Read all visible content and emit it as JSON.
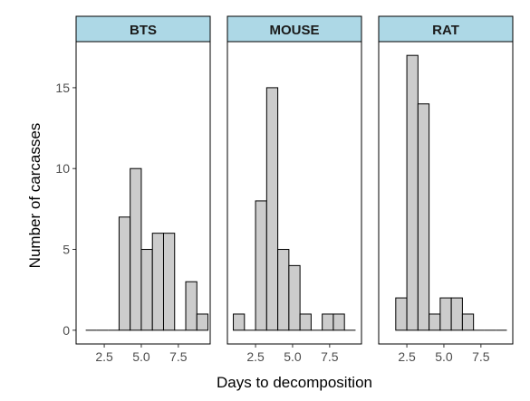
{
  "chart_data": {
    "type": "bar",
    "subtype": "faceted-histogram",
    "xlabel": "Days to decomposition",
    "ylabel": "Number of carcasses",
    "xlim": [
      0.6,
      9.65
    ],
    "ylim": [
      -0.85,
      17.85
    ],
    "x_ticks": [
      2.5,
      5.0,
      7.5
    ],
    "x_tick_labels": [
      "2.5",
      "5.0",
      "7.5"
    ],
    "y_ticks": [
      0,
      5,
      10,
      15
    ],
    "y_tick_labels": [
      "0",
      "5",
      "10",
      "15"
    ],
    "bin_width": 0.75,
    "strip_color": "#add8e6",
    "bar_fill": "#cccccc",
    "bar_stroke": "#000000",
    "grid": false,
    "facets": [
      {
        "name": "BTS",
        "bins": [
          {
            "x0": 1.25,
            "count": 0
          },
          {
            "x0": 2.0,
            "count": 0
          },
          {
            "x0": 2.75,
            "count": 0
          },
          {
            "x0": 3.5,
            "count": 7
          },
          {
            "x0": 4.25,
            "count": 10
          },
          {
            "x0": 5.0,
            "count": 5
          },
          {
            "x0": 5.75,
            "count": 6
          },
          {
            "x0": 6.5,
            "count": 6
          },
          {
            "x0": 7.25,
            "count": 0
          },
          {
            "x0": 8.0,
            "count": 3
          },
          {
            "x0": 8.75,
            "count": 1
          }
        ]
      },
      {
        "name": "MOUSE",
        "bins": [
          {
            "x0": 1.0,
            "count": 1
          },
          {
            "x0": 1.75,
            "count": 0
          },
          {
            "x0": 2.5,
            "count": 8
          },
          {
            "x0": 3.25,
            "count": 15
          },
          {
            "x0": 4.0,
            "count": 5
          },
          {
            "x0": 4.75,
            "count": 4
          },
          {
            "x0": 5.5,
            "count": 1
          },
          {
            "x0": 6.25,
            "count": 0
          },
          {
            "x0": 7.0,
            "count": 1
          },
          {
            "x0": 7.75,
            "count": 1
          },
          {
            "x0": 8.5,
            "count": 0
          }
        ]
      },
      {
        "name": "RAT",
        "bins": [
          {
            "x0": 1.75,
            "count": 2
          },
          {
            "x0": 2.5,
            "count": 17
          },
          {
            "x0": 3.25,
            "count": 14
          },
          {
            "x0": 4.0,
            "count": 1
          },
          {
            "x0": 4.75,
            "count": 2
          },
          {
            "x0": 5.5,
            "count": 2
          },
          {
            "x0": 6.25,
            "count": 1
          },
          {
            "x0": 7.0,
            "count": 0
          },
          {
            "x0": 7.75,
            "count": 0
          },
          {
            "x0": 8.5,
            "count": 0
          }
        ]
      }
    ]
  }
}
